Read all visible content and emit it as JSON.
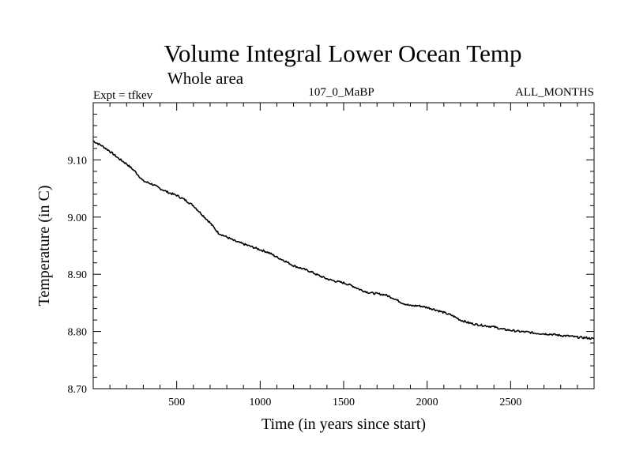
{
  "chart_data": {
    "type": "line",
    "title": "Volume Integral Lower Ocean Temp",
    "subtitle": "Whole area",
    "expt_label": "Expt = tfkev",
    "center_label": "107_0_MaBP",
    "right_label": "ALL_MONTHS",
    "xlabel": "Time (in years since start)",
    "ylabel": "Temperature (in C)",
    "xlim": [
      0,
      3000
    ],
    "ylim": [
      8.7,
      9.2
    ],
    "x_ticks": [
      500,
      1000,
      1500,
      2000,
      2500
    ],
    "x_tick_labels": [
      "500",
      "1000",
      "1500",
      "2000",
      "2500"
    ],
    "y_ticks": [
      8.7,
      8.8,
      8.9,
      9.0,
      9.1
    ],
    "y_tick_labels": [
      "8.70",
      "8.80",
      "8.90",
      "9.00",
      "9.10"
    ],
    "grid": false,
    "series": [
      {
        "color": "#000000",
        "x": [
          0,
          50,
          100,
          150,
          200,
          250,
          300,
          350,
          400,
          450,
          500,
          550,
          600,
          650,
          700,
          750,
          800,
          850,
          900,
          950,
          1000,
          1050,
          1100,
          1150,
          1200,
          1250,
          1300,
          1350,
          1400,
          1450,
          1500,
          1550,
          1600,
          1650,
          1700,
          1750,
          1800,
          1850,
          1900,
          1950,
          2000,
          2050,
          2100,
          2150,
          2200,
          2250,
          2300,
          2350,
          2400,
          2450,
          2500,
          2550,
          2600,
          2650,
          2700,
          2750,
          2800,
          2850,
          2900,
          2950,
          3000
        ],
        "y": [
          9.133,
          9.125,
          9.115,
          9.103,
          9.093,
          9.08,
          9.063,
          9.058,
          9.05,
          9.043,
          9.038,
          9.03,
          9.02,
          9.005,
          8.99,
          8.972,
          8.965,
          8.958,
          8.953,
          8.948,
          8.943,
          8.938,
          8.93,
          8.923,
          8.915,
          8.91,
          8.905,
          8.898,
          8.892,
          8.888,
          8.885,
          8.88,
          8.873,
          8.868,
          8.866,
          8.864,
          8.858,
          8.85,
          8.845,
          8.845,
          8.842,
          8.838,
          8.833,
          8.828,
          8.82,
          8.815,
          8.812,
          8.81,
          8.808,
          8.804,
          8.802,
          8.8,
          8.799,
          8.797,
          8.796,
          8.795,
          8.793,
          8.792,
          8.79,
          8.789,
          8.787
        ]
      }
    ]
  }
}
